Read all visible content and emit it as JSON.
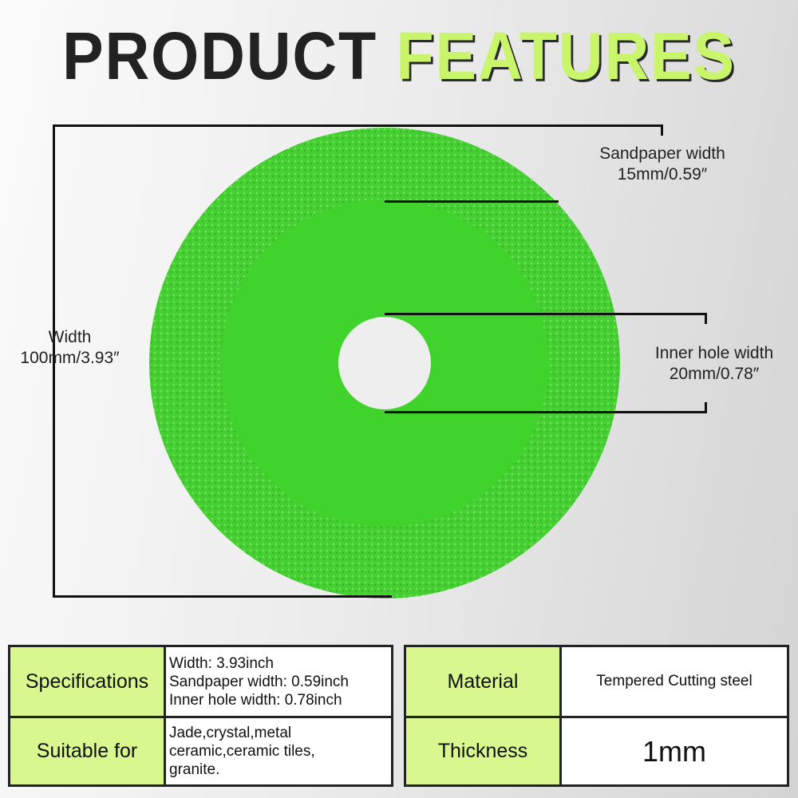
{
  "title": {
    "part1": "PRODUCT",
    "part2": "FEATURES"
  },
  "colors": {
    "accent": "#c9f56a",
    "disc": "#3fd32b",
    "cell": "#d8f78f"
  },
  "labels": {
    "width": {
      "name": "Width",
      "value": "100mm/3.93″"
    },
    "sandpaper": {
      "name": "Sandpaper width",
      "value": "15mm/0.59″"
    },
    "hole": {
      "name": "Inner hole width",
      "value": "20mm/0.78″"
    }
  },
  "spec_table": [
    {
      "key": "Specifications",
      "lines": [
        "Width: 3.93inch",
        "Sandpaper width: 0.59inch",
        "Inner hole width: 0.78inch"
      ]
    },
    {
      "key": "Suitable for",
      "lines": [
        "Jade,crystal,metal",
        "ceramic,ceramic tiles,",
        "granite."
      ]
    }
  ],
  "material_table": [
    {
      "key": "Material",
      "value": "Tempered Cutting steel"
    },
    {
      "key": "Thickness",
      "value": "1mm"
    }
  ]
}
